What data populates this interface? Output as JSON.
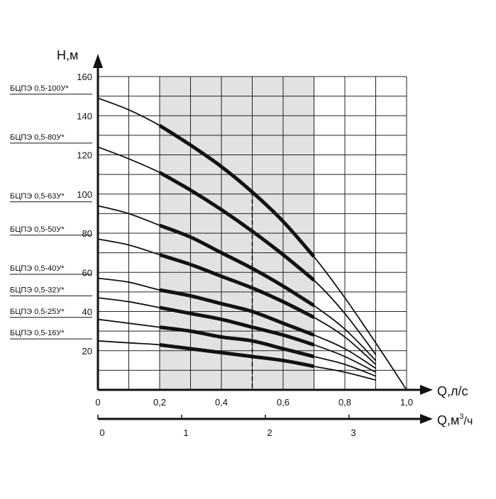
{
  "chart_data": {
    "type": "line",
    "ylabel": "Н,м",
    "xlabel": "Q,л/с",
    "x2label": "Q,м³/ч",
    "x2label_base": "Q,м",
    "x2label_sup": "3",
    "x2label_unit": "/ч",
    "ylim": [
      0,
      160
    ],
    "xlim": [
      0,
      1.0
    ],
    "y_ticks": [
      "20",
      "40",
      "60",
      "80",
      "100",
      "120",
      "140",
      "160"
    ],
    "x_ticks": [
      {
        "value": 0,
        "label": "0"
      },
      {
        "value": 0.2,
        "label": "0,2"
      },
      {
        "value": 0.4,
        "label": "0,4"
      },
      {
        "value": 0.6,
        "label": "0,6"
      },
      {
        "value": 0.8,
        "label": "0,8"
      },
      {
        "value": 1.0,
        "label": "1,0"
      }
    ],
    "x2_ticks": [
      {
        "value": 0,
        "label": "0"
      },
      {
        "value": 1,
        "label": "1"
      },
      {
        "value": 2,
        "label": "2"
      },
      {
        "value": 3,
        "label": "3"
      }
    ],
    "grid": true,
    "working_range": {
      "x": [
        0.2,
        0.7
      ]
    },
    "nominal_flow": 0.5,
    "series": [
      {
        "name": "БЦПЭ 0,5-100У*",
        "label_value": 151,
        "x": [
          0,
          0.1,
          0.2,
          0.3,
          0.4,
          0.5,
          0.6,
          0.7,
          0.8,
          0.9,
          1.0
        ],
        "y": [
          149,
          143,
          135,
          125,
          114,
          101,
          86,
          68,
          47,
          24,
          0
        ]
      },
      {
        "name": "БЦПЭ 0,5-80У*",
        "label_value": 126,
        "x": [
          0,
          0.1,
          0.2,
          0.3,
          0.4,
          0.5,
          0.6,
          0.7,
          0.8,
          0.9
        ],
        "y": [
          124,
          118,
          111,
          102,
          92,
          81,
          69,
          56,
          39,
          18
        ]
      },
      {
        "name": "БЦПЭ 0,5-63У*",
        "label_value": 96,
        "x": [
          0,
          0.1,
          0.2,
          0.3,
          0.4,
          0.5,
          0.6,
          0.7,
          0.8,
          0.9
        ],
        "y": [
          94,
          90,
          84,
          78,
          70,
          62,
          53,
          43,
          31,
          15
        ]
      },
      {
        "name": "БЦПЭ 0,5-50У*",
        "label_value": 79,
        "x": [
          0,
          0.1,
          0.2,
          0.3,
          0.4,
          0.5,
          0.6,
          0.7,
          0.8,
          0.9
        ],
        "y": [
          77,
          74,
          69,
          64,
          58,
          52,
          45,
          37,
          27,
          13
        ]
      },
      {
        "name": "БЦПЭ 0,5-40У*",
        "label_value": 59,
        "x": [
          0,
          0.1,
          0.2,
          0.3,
          0.4,
          0.5,
          0.6,
          0.7,
          0.8,
          0.9
        ],
        "y": [
          57,
          55,
          51,
          48,
          44,
          40,
          34,
          28,
          21,
          11
        ]
      },
      {
        "name": "БЦПЭ 0,5-32У*",
        "label_value": 48,
        "x": [
          0,
          0.1,
          0.2,
          0.3,
          0.4,
          0.5,
          0.6,
          0.7,
          0.8,
          0.9
        ],
        "y": [
          47,
          45,
          42,
          39,
          36,
          32,
          28,
          23,
          17,
          9
        ]
      },
      {
        "name": "БЦПЭ 0,5-25У*",
        "label_value": 37,
        "x": [
          0,
          0.1,
          0.2,
          0.3,
          0.4,
          0.5,
          0.6,
          0.7,
          0.8,
          0.9
        ],
        "y": [
          36,
          34,
          32,
          30,
          27,
          25,
          21,
          17,
          13,
          7
        ]
      },
      {
        "name": "БЦПЭ 0,5-16У*",
        "label_value": 26,
        "x": [
          0,
          0.1,
          0.2,
          0.3,
          0.4,
          0.5,
          0.6,
          0.7,
          0.8,
          0.9
        ],
        "y": [
          25,
          24,
          23,
          21,
          19,
          17,
          15,
          12,
          9,
          5
        ]
      }
    ]
  }
}
